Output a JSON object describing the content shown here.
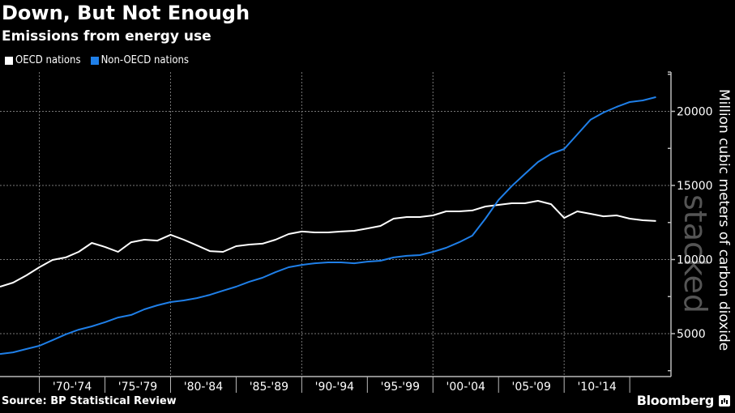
{
  "header": {
    "title": "Down, But Not Enough",
    "subtitle": "Emissions from energy use"
  },
  "legend": [
    {
      "label": "OECD nations",
      "color": "#ffffff"
    },
    {
      "label": "Non-OECD nations",
      "color": "#1f7fe8"
    }
  ],
  "footer": {
    "source": "Source: BP Statistical Review",
    "brand": "Bloomberg"
  },
  "watermark": "stacked",
  "chart_data": {
    "type": "line",
    "title": "Down, But Not Enough",
    "subtitle": "Emissions from energy use",
    "xlabel": "",
    "ylabel": "Million cubic meters of carbon dioxide",
    "x_start_year": 1967,
    "x_end_year": 2017,
    "x": [
      1967,
      1968,
      1969,
      1970,
      1971,
      1972,
      1973,
      1974,
      1975,
      1976,
      1977,
      1978,
      1979,
      1980,
      1981,
      1982,
      1983,
      1984,
      1985,
      1986,
      1987,
      1988,
      1989,
      1990,
      1991,
      1992,
      1993,
      1994,
      1995,
      1996,
      1997,
      1998,
      1999,
      2000,
      2001,
      2002,
      2003,
      2004,
      2005,
      2006,
      2007,
      2008,
      2009,
      2010,
      2011,
      2012,
      2013,
      2014,
      2015,
      2016,
      2017
    ],
    "x_categories": [
      "'70-'74",
      "'75-'79",
      "'80-'84",
      "'85-'89",
      "'90-'94",
      "'95-'99",
      "'00-'04",
      "'05-'09",
      "'10-'14"
    ],
    "x_category_start_years": [
      1970,
      1975,
      1980,
      1985,
      1990,
      1995,
      2000,
      2005,
      2010
    ],
    "x_grid_years": [
      1970,
      1980,
      1990,
      2000,
      2010
    ],
    "ylim": [
      2500,
      22500
    ],
    "yticks": [
      5000,
      10000,
      15000,
      20000
    ],
    "yticks_minor": [
      2500,
      7500,
      12500,
      17500,
      22500
    ],
    "grid": true,
    "y_axis_side": "right",
    "legend_position": "top-left",
    "series": [
      {
        "name": "OECD nations",
        "color": "#ffffff",
        "values": [
          8170,
          8440,
          8930,
          9480,
          9970,
          10140,
          10520,
          11120,
          10850,
          10520,
          11170,
          11340,
          11280,
          11670,
          11340,
          10960,
          10570,
          10520,
          10900,
          11010,
          11070,
          11340,
          11720,
          11890,
          11830,
          11830,
          11890,
          11940,
          12100,
          12270,
          12760,
          12870,
          12870,
          12980,
          13250,
          13250,
          13310,
          13580,
          13690,
          13800,
          13800,
          13960,
          13740,
          12810,
          13250,
          13090,
          12920,
          12980,
          12760,
          12650,
          12600
        ]
      },
      {
        "name": "Non-OECD nations",
        "color": "#1f7fe8",
        "values": [
          3630,
          3740,
          3960,
          4180,
          4560,
          4950,
          5270,
          5490,
          5770,
          6090,
          6260,
          6640,
          6910,
          7130,
          7240,
          7400,
          7620,
          7900,
          8170,
          8500,
          8770,
          9150,
          9480,
          9640,
          9750,
          9810,
          9810,
          9750,
          9860,
          9920,
          10140,
          10250,
          10300,
          10520,
          10790,
          11170,
          11610,
          12760,
          14020,
          14950,
          15770,
          16580,
          17130,
          17460,
          18440,
          19430,
          19920,
          20300,
          20630,
          20740,
          20960
        ]
      }
    ]
  }
}
